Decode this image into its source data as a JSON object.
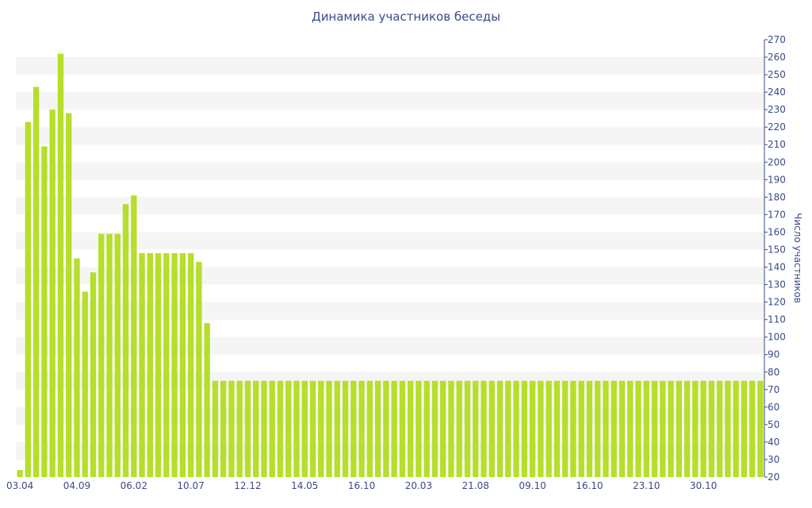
{
  "chart_data": {
    "type": "bar",
    "title": "Динамика участников беседы",
    "xlabel": "",
    "ylabel": "Число участников",
    "ylim": [
      20,
      270
    ],
    "y_ticks": [
      20,
      30,
      40,
      50,
      60,
      70,
      80,
      90,
      100,
      110,
      120,
      130,
      140,
      150,
      160,
      170,
      180,
      190,
      200,
      210,
      220,
      230,
      240,
      250,
      260,
      270
    ],
    "y_axis_position": "right",
    "grid": "horizontal-bands",
    "bar_color": "#b5df2a",
    "band_color": "#f5f5f5",
    "x_tick_labels": [
      {
        "label": "03.04",
        "index": 0
      },
      {
        "label": "04.09",
        "index": 7
      },
      {
        "label": "06.02",
        "index": 14
      },
      {
        "label": "10.07",
        "index": 21
      },
      {
        "label": "12.12",
        "index": 28
      },
      {
        "label": "14.05",
        "index": 35
      },
      {
        "label": "16.10",
        "index": 42
      },
      {
        "label": "20.03",
        "index": 49
      },
      {
        "label": "21.08",
        "index": 56
      },
      {
        "label": "09.10",
        "index": 63
      },
      {
        "label": "16.10",
        "index": 70
      },
      {
        "label": "23.10",
        "index": 77
      },
      {
        "label": "30.10",
        "index": 84
      }
    ],
    "values": [
      24,
      223,
      243,
      209,
      230,
      262,
      228,
      145,
      126,
      137,
      159,
      159,
      159,
      176,
      181,
      148,
      148,
      148,
      148,
      148,
      148,
      148,
      143,
      108,
      75,
      75,
      75,
      75,
      75,
      75,
      75,
      75,
      75,
      75,
      75,
      75,
      75,
      75,
      75,
      75,
      75,
      75,
      75,
      75,
      75,
      75,
      75,
      75,
      75,
      75,
      75,
      75,
      75,
      75,
      75,
      75,
      75,
      75,
      75,
      75,
      75,
      75,
      75,
      75,
      75,
      75,
      75,
      75,
      75,
      75,
      75,
      75,
      75,
      75,
      75,
      75,
      75,
      75,
      75,
      75,
      75,
      75,
      75,
      75,
      75,
      75,
      75,
      75,
      75,
      75,
      75,
      75
    ]
  }
}
